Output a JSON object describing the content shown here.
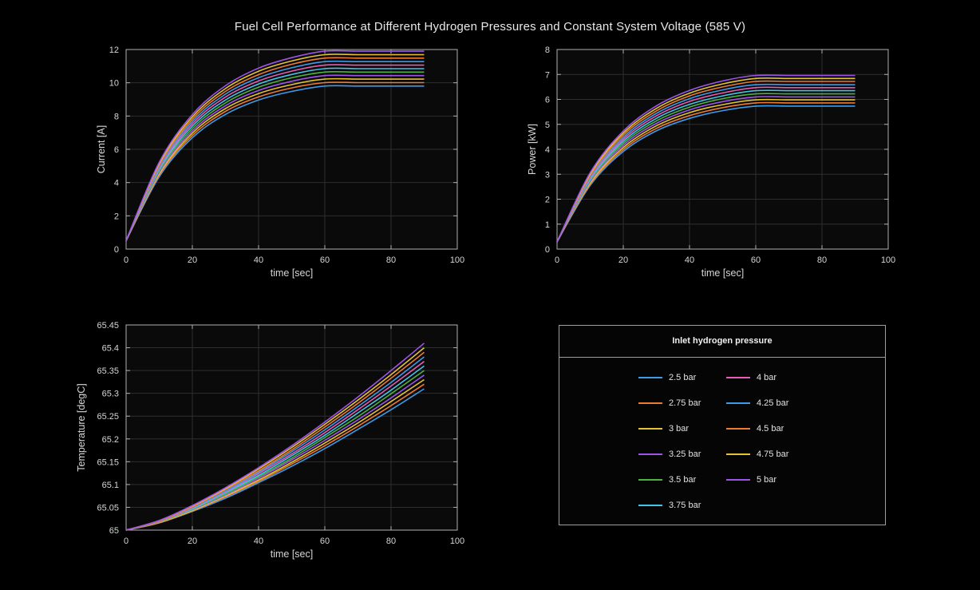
{
  "title": "Fuel Cell Performance at Different Hydrogen Pressures and Constant System Voltage (585 V)",
  "theme": {
    "background": "#000000",
    "plot_background": "#0a0a0a",
    "grid_color": "#2e2e2e",
    "axis_color": "#b0b0b0",
    "text_color": "#d6d6d6",
    "title_color": "#e8e8e8",
    "legend_border": "#9e9e9e"
  },
  "legend": {
    "title": "Inlet hydrogen pressure",
    "entries": [
      {
        "label": "2.5 bar",
        "color": "#3D9BE9"
      },
      {
        "label": "2.75 bar",
        "color": "#ED7B30"
      },
      {
        "label": "3 bar",
        "color": "#E5C230"
      },
      {
        "label": "3.25 bar",
        "color": "#9D55E8"
      },
      {
        "label": "3.5 bar",
        "color": "#4BB440"
      },
      {
        "label": "3.75 bar",
        "color": "#42C3E8"
      },
      {
        "label": "4 bar",
        "color": "#E85BB6"
      },
      {
        "label": "4.25 bar",
        "color": "#3D9BE9"
      },
      {
        "label": "4.5 bar",
        "color": "#ED7B30"
      },
      {
        "label": "4.75 bar",
        "color": "#E5C230"
      },
      {
        "label": "5 bar",
        "color": "#9D55E8"
      }
    ]
  },
  "chart_data": [
    {
      "id": "current",
      "type": "line",
      "xlabel": "time [sec]",
      "ylabel": "Current [A]",
      "xlim": [
        0,
        100
      ],
      "ylim": [
        0,
        12
      ],
      "xticks": [
        0,
        20,
        40,
        60,
        80,
        100
      ],
      "xticklabels": [
        "0",
        "20",
        "40",
        "60",
        "80",
        "100"
      ],
      "yticks": [
        0,
        2,
        4,
        6,
        8,
        10,
        12
      ],
      "yticklabels": [
        "0",
        "2",
        "4",
        "6",
        "8",
        "10",
        "12"
      ],
      "grid": true,
      "x": [
        0,
        10,
        20,
        30,
        40,
        50,
        60,
        70,
        80,
        90
      ],
      "series": [
        {
          "name": "2.5 bar",
          "color": "#3D9BE9",
          "values": [
            0.5,
            4.35,
            6.69,
            8.1,
            8.96,
            9.48,
            9.8,
            9.8,
            9.8,
            9.8
          ]
        },
        {
          "name": "2.75 bar",
          "color": "#ED7B30",
          "values": [
            0.5,
            4.44,
            6.83,
            8.28,
            9.15,
            9.69,
            10.01,
            10.01,
            10.01,
            10.01
          ]
        },
        {
          "name": "3 bar",
          "color": "#E5C230",
          "values": [
            0.5,
            4.52,
            6.97,
            8.45,
            9.35,
            9.89,
            10.22,
            10.22,
            10.22,
            10.22
          ]
        },
        {
          "name": "3.25 bar",
          "color": "#9D55E8",
          "values": [
            0.5,
            4.61,
            7.11,
            8.62,
            9.54,
            10.09,
            10.43,
            10.43,
            10.43,
            10.43
          ]
        },
        {
          "name": "3.5 bar",
          "color": "#4BB440",
          "values": [
            0.5,
            4.7,
            7.25,
            8.79,
            9.73,
            10.3,
            10.64,
            10.64,
            10.64,
            10.64
          ]
        },
        {
          "name": "3.75 bar",
          "color": "#42C3E8",
          "values": [
            0.5,
            4.79,
            7.39,
            8.96,
            9.92,
            10.5,
            10.85,
            10.85,
            10.85,
            10.85
          ]
        },
        {
          "name": "4 bar",
          "color": "#E85BB6",
          "values": [
            0.5,
            4.87,
            7.53,
            9.14,
            10.11,
            10.7,
            11.06,
            11.06,
            11.06,
            11.06
          ]
        },
        {
          "name": "4.25 bar",
          "color": "#3D9BE9",
          "values": [
            0.5,
            4.96,
            7.67,
            9.31,
            10.3,
            10.9,
            11.27,
            11.27,
            11.27,
            11.27
          ]
        },
        {
          "name": "4.5 bar",
          "color": "#ED7B30",
          "values": [
            0.5,
            5.05,
            7.81,
            9.48,
            10.49,
            11.11,
            11.48,
            11.48,
            11.48,
            11.48
          ]
        },
        {
          "name": "4.75 bar",
          "color": "#E5C230",
          "values": [
            0.5,
            5.14,
            7.95,
            9.65,
            10.69,
            11.31,
            11.69,
            11.69,
            11.69,
            11.69
          ]
        },
        {
          "name": "5 bar",
          "color": "#9D55E8",
          "values": [
            0.5,
            5.22,
            8.09,
            9.82,
            10.88,
            11.51,
            11.9,
            11.9,
            11.9,
            11.9
          ]
        }
      ]
    },
    {
      "id": "power",
      "type": "line",
      "xlabel": "time [sec]",
      "ylabel": "Power [kW]",
      "xlim": [
        0,
        100
      ],
      "ylim": [
        0,
        8
      ],
      "xticks": [
        0,
        20,
        40,
        60,
        80,
        100
      ],
      "xticklabels": [
        "0",
        "20",
        "40",
        "60",
        "80",
        "100"
      ],
      "yticks": [
        0,
        1,
        2,
        3,
        4,
        5,
        6,
        7,
        8
      ],
      "yticklabels": [
        "0",
        "1",
        "2",
        "3",
        "4",
        "5",
        "6",
        "7",
        "8"
      ],
      "grid": true,
      "x": [
        0,
        10,
        20,
        30,
        40,
        50,
        60,
        70,
        80,
        90
      ],
      "series": [
        {
          "name": "2.5 bar",
          "color": "#3D9BE9",
          "values": [
            0.29,
            2.55,
            3.91,
            4.74,
            5.24,
            5.55,
            5.73,
            5.73,
            5.73,
            5.73
          ]
        },
        {
          "name": "2.75 bar",
          "color": "#ED7B30",
          "values": [
            0.29,
            2.6,
            3.99,
            4.84,
            5.35,
            5.67,
            5.86,
            5.86,
            5.86,
            5.86
          ]
        },
        {
          "name": "3 bar",
          "color": "#E5C230",
          "values": [
            0.29,
            2.65,
            4.07,
            4.94,
            5.47,
            5.79,
            5.98,
            5.98,
            5.98,
            5.98
          ]
        },
        {
          "name": "3.25 bar",
          "color": "#9D55E8",
          "values": [
            0.29,
            2.7,
            4.16,
            5.04,
            5.58,
            5.91,
            6.1,
            6.1,
            6.1,
            6.1
          ]
        },
        {
          "name": "3.5 bar",
          "color": "#4BB440",
          "values": [
            0.29,
            2.75,
            4.24,
            5.14,
            5.69,
            6.03,
            6.22,
            6.22,
            6.22,
            6.22
          ]
        },
        {
          "name": "3.75 bar",
          "color": "#42C3E8",
          "values": [
            0.29,
            2.8,
            4.32,
            5.24,
            5.8,
            6.14,
            6.35,
            6.35,
            6.35,
            6.35
          ]
        },
        {
          "name": "4 bar",
          "color": "#E85BB6",
          "values": [
            0.29,
            2.85,
            4.4,
            5.34,
            5.92,
            6.26,
            6.47,
            6.47,
            6.47,
            6.47
          ]
        },
        {
          "name": "4.25 bar",
          "color": "#3D9BE9",
          "values": [
            0.29,
            2.9,
            4.48,
            5.44,
            6.03,
            6.38,
            6.59,
            6.59,
            6.59,
            6.59
          ]
        },
        {
          "name": "4.5 bar",
          "color": "#ED7B30",
          "values": [
            0.29,
            2.95,
            4.57,
            5.54,
            6.14,
            6.5,
            6.72,
            6.72,
            6.72,
            6.72
          ]
        },
        {
          "name": "4.75 bar",
          "color": "#E5C230",
          "values": [
            0.29,
            3.01,
            4.65,
            5.64,
            6.25,
            6.62,
            6.84,
            6.84,
            6.84,
            6.84
          ]
        },
        {
          "name": "5 bar",
          "color": "#9D55E8",
          "values": [
            0.29,
            3.06,
            4.73,
            5.74,
            6.36,
            6.74,
            6.96,
            6.96,
            6.96,
            6.96
          ]
        }
      ]
    },
    {
      "id": "temperature",
      "type": "line",
      "xlabel": "time [sec]",
      "ylabel": "Temperature [degC]",
      "xlim": [
        0,
        100
      ],
      "ylim": [
        65,
        65.45
      ],
      "xticks": [
        0,
        20,
        40,
        60,
        80,
        100
      ],
      "xticklabels": [
        "0",
        "20",
        "40",
        "60",
        "80",
        "100"
      ],
      "yticks": [
        65,
        65.05,
        65.1,
        65.15,
        65.2,
        65.25,
        65.3,
        65.35,
        65.4,
        65.45
      ],
      "yticklabels": [
        "65",
        "65.05",
        "65.1",
        "65.15",
        "65.2",
        "65.25",
        "65.3",
        "65.35",
        "65.4",
        "65.45"
      ],
      "grid": true,
      "x": [
        0,
        10,
        20,
        30,
        40,
        50,
        60,
        70,
        80,
        90
      ],
      "series": [
        {
          "name": "2.5 bar",
          "color": "#3D9BE9",
          "values": [
            65,
            65.016,
            65.041,
            65.07,
            65.104,
            65.14,
            65.179,
            65.221,
            65.264,
            65.31
          ]
        },
        {
          "name": "2.75 bar",
          "color": "#ED7B30",
          "values": [
            65,
            65.016,
            65.042,
            65.073,
            65.107,
            65.145,
            65.185,
            65.228,
            65.273,
            65.32
          ]
        },
        {
          "name": "3 bar",
          "color": "#E5C230",
          "values": [
            65,
            65.017,
            65.043,
            65.075,
            65.11,
            65.149,
            65.191,
            65.235,
            65.282,
            65.33
          ]
        },
        {
          "name": "3.25 bar",
          "color": "#9D55E8",
          "values": [
            65,
            65.018,
            65.045,
            65.077,
            65.114,
            65.154,
            65.197,
            65.242,
            65.29,
            65.34
          ]
        },
        {
          "name": "3.5 bar",
          "color": "#4BB440",
          "values": [
            65,
            65.018,
            65.046,
            65.079,
            65.117,
            65.158,
            65.203,
            65.249,
            65.299,
            65.35
          ]
        },
        {
          "name": "3.75 bar",
          "color": "#42C3E8",
          "values": [
            65,
            65.019,
            65.047,
            65.082,
            65.12,
            65.163,
            65.208,
            65.257,
            65.307,
            65.36
          ]
        },
        {
          "name": "4 bar",
          "color": "#E85BB6",
          "values": [
            65,
            65.019,
            65.049,
            65.084,
            65.124,
            65.167,
            65.214,
            65.264,
            65.316,
            65.37
          ]
        },
        {
          "name": "4.25 bar",
          "color": "#3D9BE9",
          "values": [
            65,
            65.02,
            65.05,
            65.086,
            65.127,
            65.172,
            65.22,
            65.271,
            65.324,
            65.38
          ]
        },
        {
          "name": "4.5 bar",
          "color": "#ED7B30",
          "values": [
            65,
            65.02,
            65.051,
            65.089,
            65.13,
            65.176,
            65.226,
            65.278,
            65.333,
            65.39
          ]
        },
        {
          "name": "4.75 bar",
          "color": "#E5C230",
          "values": [
            65,
            65.021,
            65.053,
            65.091,
            65.134,
            65.181,
            65.232,
            65.285,
            65.341,
            65.4
          ]
        },
        {
          "name": "5 bar",
          "color": "#9D55E8",
          "values": [
            65,
            65.021,
            65.054,
            65.093,
            65.137,
            65.185,
            65.237,
            65.292,
            65.35,
            65.41
          ]
        }
      ]
    }
  ]
}
